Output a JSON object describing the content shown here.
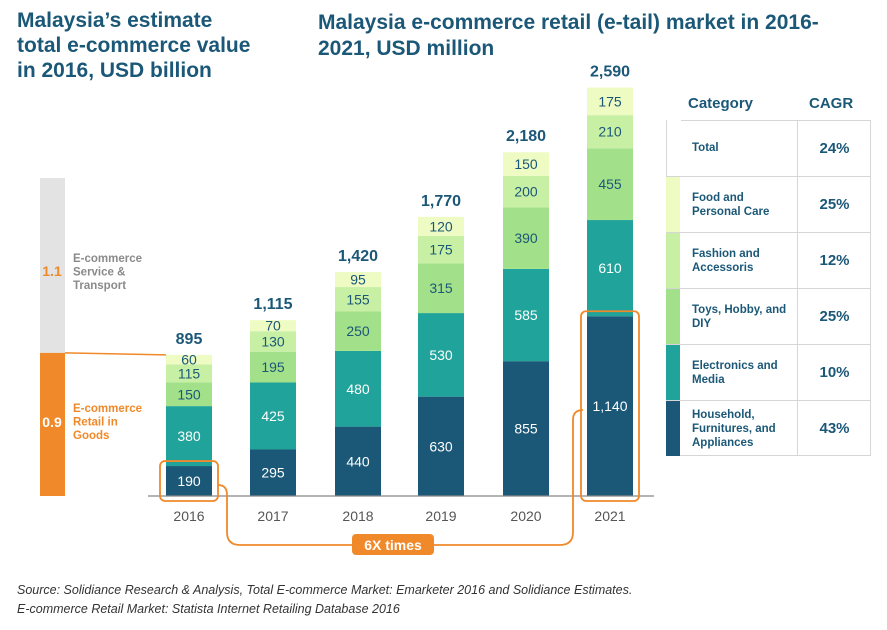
{
  "left_panel": {
    "title": "Malaysia’s estimate total e-commerce value in 2016, USD billion",
    "top_value": "1.1",
    "top_label_lines": [
      "E-commerce",
      "Service &",
      "Transport"
    ],
    "bottom_value": "0.9",
    "bottom_label_lines": [
      "E-commerce",
      "Retail in",
      "Goods"
    ],
    "colors": {
      "top": "#e3e3e3",
      "bottom": "#f0892a"
    }
  },
  "chart_title": "Malaysia e-commerce retail (e-tail) market in 2016-2021, USD million",
  "growth_label": "6X times",
  "chart_data": {
    "type": "bar",
    "stacked": true,
    "categories": [
      "2016",
      "2017",
      "2018",
      "2019",
      "2020",
      "2021"
    ],
    "series": [
      {
        "name": "Household, Furnitures, and Appliances",
        "color": "#1b5878",
        "values": [
          190,
          295,
          440,
          630,
          855,
          1140
        ],
        "labels": [
          "190",
          "295",
          "440",
          "630",
          "855",
          "1,140"
        ]
      },
      {
        "name": "Electronics and Media",
        "color": "#20a39a",
        "values": [
          380,
          425,
          480,
          530,
          585,
          610
        ],
        "labels": [
          "380",
          "425",
          "480",
          "530",
          "585",
          "610"
        ]
      },
      {
        "name": "Toys, Hobby, and DIY",
        "color": "#a3e08a",
        "values": [
          150,
          195,
          250,
          315,
          390,
          455
        ],
        "labels": [
          "150",
          "195",
          "250",
          "315",
          "390",
          "455"
        ]
      },
      {
        "name": "Fashion and Accessoris",
        "color": "#c8f0a5",
        "values": [
          115,
          130,
          155,
          175,
          200,
          210
        ],
        "labels": [
          "115",
          "130",
          "155",
          "175",
          "200",
          "210"
        ]
      },
      {
        "name": "Food and Personal Care",
        "color": "#eefbc3",
        "values": [
          60,
          70,
          95,
          120,
          150,
          175
        ],
        "labels": [
          "60",
          "70",
          "95",
          "120",
          "150",
          "175"
        ]
      }
    ],
    "totals": [
      895,
      1115,
      1420,
      1770,
      2180,
      2590
    ],
    "total_labels": [
      "895",
      "1,115",
      "1,420",
      "1,770",
      "2,180",
      "2,590"
    ],
    "ylim": [
      0,
      2600
    ],
    "grid": false,
    "legend": "right (table)"
  },
  "table": {
    "header_category": "Category",
    "header_cagr": "CAGR",
    "rows": [
      {
        "category": "Total",
        "cagr": "24%",
        "color": "#ffffff"
      },
      {
        "category": "Food and Personal Care",
        "cagr": "25%",
        "color": "#eefbc3"
      },
      {
        "category": "Fashion and Accessoris",
        "cagr": "12%",
        "color": "#c8f0a5"
      },
      {
        "category": "Toys, Hobby, and DIY",
        "cagr": "25%",
        "color": "#a3e08a"
      },
      {
        "category": "Electronics and Media",
        "cagr": "10%",
        "color": "#20a39a"
      },
      {
        "category": "Household, Furnitures, and Appliances",
        "cagr": "43%",
        "color": "#1b5878"
      }
    ]
  },
  "footnote": {
    "line1": "Source: Solidiance Research & Analysis, Total E-commerce Market: Emarketer 2016 and Solidiance Estimates.",
    "line2": "E-commerce Retail Market: Statista Internet Retailing Database 2016"
  },
  "accent_color": "#f0892a",
  "title_color": "#1b5878"
}
